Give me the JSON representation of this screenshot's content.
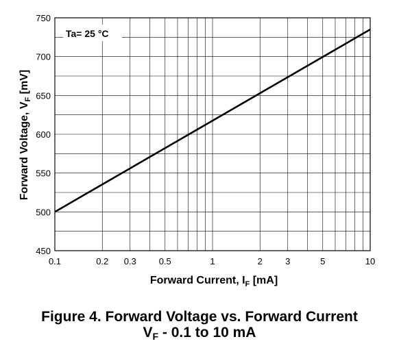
{
  "chart_data": {
    "type": "line",
    "annotation": "Ta= 25 °C",
    "xlabel_main": "Forward Current, I",
    "xlabel_sub": "F",
    "xlabel_unit": " [mA]",
    "ylabel_main": "Forward Voltage, V",
    "ylabel_sub": "F",
    "ylabel_unit": " [mV]",
    "x_scale": "log",
    "xlim": [
      0.1,
      10
    ],
    "ylim": [
      450,
      750
    ],
    "x_ticks": [
      0.1,
      0.2,
      0.3,
      0.5,
      1,
      2,
      3,
      5,
      10
    ],
    "x_tick_labels": [
      "0.1",
      "0.2",
      "0.3",
      "0.5",
      "1",
      "2",
      "3",
      "5",
      "10"
    ],
    "y_ticks": [
      450,
      500,
      550,
      600,
      650,
      700,
      750
    ],
    "y_tick_labels": [
      "450",
      "500",
      "550",
      "600",
      "650",
      "700",
      "750"
    ],
    "grid": true,
    "series": [
      {
        "x": [
          0.1,
          10
        ],
        "y": [
          500,
          735
        ]
      }
    ]
  },
  "caption": {
    "line1": "Figure 4. Forward Voltage vs. Forward Current",
    "line2_main": "V",
    "line2_sub": "F",
    "line2_rest": " - 0.1 to 10 mA"
  }
}
